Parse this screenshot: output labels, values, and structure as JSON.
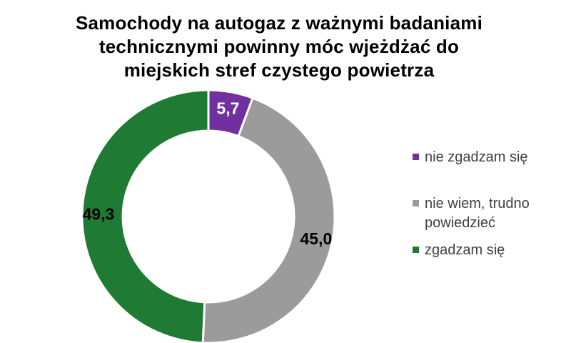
{
  "chart_data": {
    "type": "pie",
    "subtype": "donut",
    "title": "Samochody na autogaz z ważnymi badaniami technicznymi powinny móc wjeżdżać do miejskich stref czystego powietrza",
    "title_lines": [
      "Samochody na autogaz z ważnymi badaniami",
      "technicznymi powinny móc wjeżdżać do",
      "miejskich stref czystego powietrza"
    ],
    "start_angle_deg": 0,
    "direction": "clockwise",
    "units": "%",
    "legend_position": "right",
    "slices": [
      {
        "label": "nie zgadzam się",
        "value": 5.7,
        "value_label": "5,7",
        "color": "#7030A0",
        "value_label_color": "#FFFFFF"
      },
      {
        "label": "nie wiem, trudno powiedzieć",
        "value": 45.0,
        "value_label": "45,0",
        "color": "#9B9B9B",
        "value_label_color": "#000000"
      },
      {
        "label": "zgadzam się",
        "value": 49.3,
        "value_label": "49,3",
        "color": "#1F7A33",
        "value_label_color": "#000000"
      }
    ],
    "colors": {
      "background": "#FFFFFF",
      "slice_border": "#FFFFFF",
      "title_text": "#000000",
      "legend_text": "#404040"
    }
  }
}
